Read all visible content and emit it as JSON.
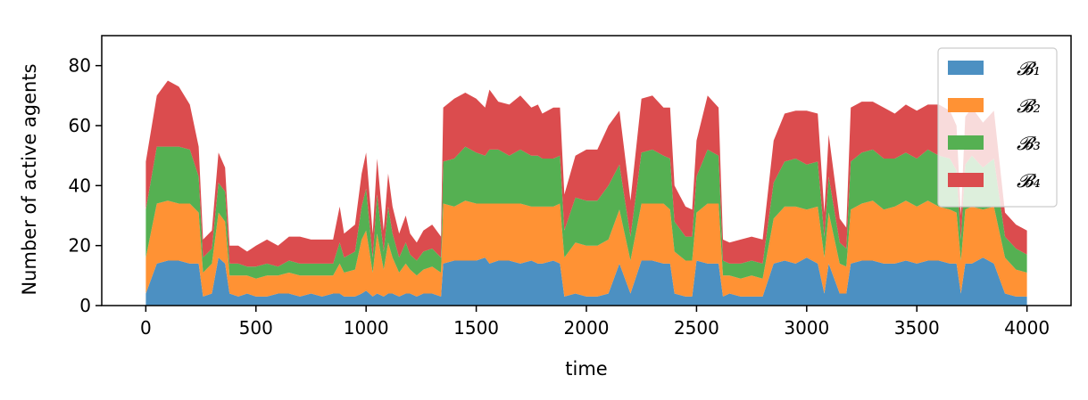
{
  "chart_data": {
    "type": "area",
    "stacked": true,
    "title": "",
    "xlabel": "time",
    "ylabel": "Number of active agents",
    "xlim": [
      -200,
      4200
    ],
    "ylim": [
      0,
      90
    ],
    "x_ticks": [
      0,
      500,
      1000,
      1500,
      2000,
      2500,
      3000,
      3500,
      4000
    ],
    "x_tick_labels": [
      "0",
      "500",
      "1000",
      "1500",
      "2000",
      "2500",
      "3000",
      "3500",
      "4000"
    ],
    "y_ticks": [
      0,
      20,
      40,
      60,
      80
    ],
    "y_tick_labels": [
      "0",
      "20",
      "40",
      "60",
      "80"
    ],
    "grid": false,
    "legend_position": "top-right",
    "x": [
      0,
      50,
      100,
      150,
      200,
      240,
      260,
      300,
      330,
      360,
      380,
      420,
      460,
      500,
      550,
      600,
      650,
      700,
      750,
      800,
      850,
      880,
      900,
      950,
      980,
      1000,
      1030,
      1050,
      1080,
      1100,
      1120,
      1150,
      1180,
      1200,
      1230,
      1260,
      1300,
      1340,
      1350,
      1400,
      1450,
      1500,
      1540,
      1560,
      1600,
      1650,
      1700,
      1750,
      1780,
      1800,
      1850,
      1880,
      1900,
      1950,
      2000,
      2050,
      2100,
      2150,
      2200,
      2250,
      2300,
      2350,
      2380,
      2400,
      2450,
      2480,
      2500,
      2550,
      2600,
      2620,
      2650,
      2700,
      2750,
      2800,
      2850,
      2900,
      2950,
      3000,
      3050,
      3080,
      3100,
      3150,
      3180,
      3200,
      3250,
      3300,
      3350,
      3400,
      3450,
      3500,
      3550,
      3600,
      3650,
      3680,
      3700,
      3720,
      3750,
      3800,
      3850,
      3900,
      3950,
      4000
    ],
    "series": [
      {
        "name": "𝓑₁",
        "color": "#4c90c2",
        "values": [
          4,
          14,
          15,
          15,
          14,
          14,
          3,
          4,
          16,
          14,
          4,
          3,
          4,
          3,
          3,
          4,
          4,
          3,
          4,
          3,
          4,
          4,
          3,
          3,
          4,
          5,
          3,
          4,
          3,
          4,
          4,
          3,
          4,
          4,
          3,
          4,
          4,
          3,
          14,
          15,
          15,
          15,
          16,
          14,
          15,
          15,
          14,
          15,
          14,
          14,
          15,
          14,
          3,
          4,
          3,
          3,
          4,
          14,
          4,
          15,
          15,
          14,
          14,
          4,
          3,
          3,
          15,
          14,
          14,
          3,
          4,
          3,
          3,
          3,
          14,
          15,
          14,
          16,
          14,
          4,
          14,
          4,
          4,
          14,
          15,
          15,
          14,
          14,
          15,
          14,
          15,
          15,
          14,
          14,
          4,
          14,
          14,
          16,
          14,
          4,
          3,
          3
        ]
      },
      {
        "name": "𝓑₂",
        "color": "#ff9234",
        "values": [
          12,
          20,
          20,
          19,
          20,
          17,
          8,
          10,
          15,
          14,
          6,
          7,
          6,
          6,
          7,
          6,
          7,
          7,
          6,
          7,
          6,
          10,
          8,
          9,
          18,
          20,
          8,
          20,
          9,
          17,
          12,
          8,
          10,
          8,
          7,
          8,
          9,
          8,
          20,
          18,
          20,
          19,
          18,
          20,
          19,
          19,
          20,
          18,
          19,
          19,
          18,
          20,
          13,
          17,
          17,
          17,
          18,
          18,
          11,
          19,
          19,
          20,
          18,
          14,
          12,
          12,
          16,
          20,
          20,
          7,
          6,
          6,
          7,
          6,
          15,
          18,
          19,
          16,
          19,
          12,
          17,
          10,
          9,
          18,
          19,
          20,
          18,
          19,
          20,
          19,
          20,
          18,
          18,
          17,
          11,
          18,
          19,
          16,
          19,
          12,
          9,
          8
        ]
      },
      {
        "name": "𝓑₃",
        "color": "#55b052",
        "values": [
          16,
          19,
          18,
          19,
          18,
          12,
          5,
          5,
          10,
          10,
          4,
          4,
          3,
          4,
          4,
          3,
          4,
          4,
          4,
          4,
          4,
          7,
          5,
          6,
          11,
          14,
          5,
          13,
          6,
          12,
          8,
          5,
          7,
          5,
          5,
          6,
          6,
          5,
          14,
          16,
          18,
          17,
          16,
          18,
          18,
          16,
          18,
          17,
          17,
          16,
          16,
          16,
          9,
          15,
          15,
          15,
          18,
          15,
          8,
          17,
          18,
          16,
          17,
          10,
          8,
          8,
          12,
          18,
          16,
          5,
          4,
          5,
          5,
          5,
          12,
          15,
          16,
          15,
          15,
          7,
          12,
          7,
          6,
          16,
          17,
          17,
          17,
          16,
          16,
          16,
          17,
          17,
          17,
          14,
          7,
          15,
          17,
          14,
          16,
          7,
          7,
          6
        ]
      },
      {
        "name": "𝓑₄",
        "color": "#db4c4e",
        "values": [
          16,
          17,
          22,
          20,
          15,
          10,
          6,
          6,
          10,
          8,
          6,
          6,
          5,
          7,
          8,
          7,
          8,
          9,
          8,
          8,
          8,
          12,
          8,
          9,
          11,
          12,
          8,
          12,
          7,
          11,
          9,
          8,
          9,
          7,
          6,
          7,
          8,
          7,
          18,
          20,
          18,
          18,
          16,
          20,
          16,
          17,
          18,
          16,
          17,
          15,
          17,
          16,
          12,
          14,
          17,
          17,
          20,
          18,
          12,
          18,
          18,
          16,
          17,
          12,
          10,
          9,
          12,
          18,
          16,
          7,
          7,
          8,
          8,
          8,
          14,
          16,
          16,
          18,
          16,
          8,
          14,
          8,
          7,
          18,
          17,
          16,
          17,
          15,
          16,
          16,
          15,
          17,
          16,
          15,
          8,
          16,
          16,
          15,
          16,
          8,
          8,
          8
        ]
      }
    ]
  }
}
